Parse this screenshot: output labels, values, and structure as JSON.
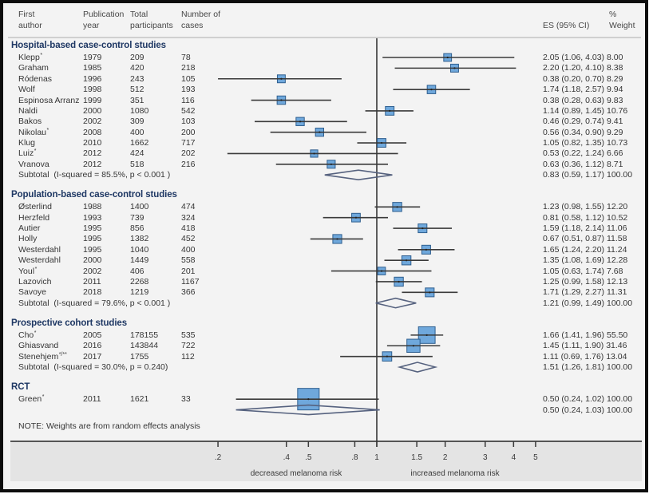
{
  "header": {
    "author": [
      "First",
      "author"
    ],
    "year": [
      "Publication",
      "year"
    ],
    "participants": [
      "Total",
      "participants"
    ],
    "cases": [
      "Number of",
      "cases"
    ],
    "es": "ES (95% CI)",
    "weight": [
      "%",
      "Weight"
    ]
  },
  "note": "NOTE: Weights are from random effects analysis",
  "colors": {
    "box_fill": "#6fa8dc",
    "box_stroke": "#2f5f8f",
    "ci_line": "#3a3a3a",
    "diamond_stroke": "#56627f",
    "subgroup_title": "#1f3864"
  },
  "chart_data": {
    "type": "scatter",
    "subtype": "forest-plot",
    "title": "",
    "x_scale": "log",
    "xlim": [
      0.2,
      5
    ],
    "null_line": 1,
    "x_ticks": [
      {
        "value": 0.2,
        "label": ".2"
      },
      {
        "value": 0.4,
        "label": ".4"
      },
      {
        "value": 0.5,
        "label": ".5"
      },
      {
        "value": 0.8,
        "label": ".8"
      },
      {
        "value": 1,
        "label": "1"
      },
      {
        "value": 1.5,
        "label": "1.5"
      },
      {
        "value": 2,
        "label": "2"
      },
      {
        "value": 3,
        "label": "3"
      },
      {
        "value": 4,
        "label": "4"
      },
      {
        "value": 5,
        "label": "5"
      }
    ],
    "xlabel_left": "decreased melanoma risk",
    "xlabel_right": "increased melanoma risk",
    "groups": [
      {
        "title": "Hospital-based case-control studies",
        "studies": [
          {
            "author": "Klepp",
            "note": "*",
            "year": "1979",
            "participants": "209",
            "cases": "78",
            "es": 2.05,
            "ci": [
              1.06,
              4.03
            ],
            "weight": 8.0,
            "es_label": "2.05 (1.06, 4.03)",
            "weight_label": "8.00"
          },
          {
            "author": "Graham",
            "year": "1985",
            "participants": "420",
            "cases": "218",
            "es": 2.2,
            "ci": [
              1.2,
              4.1
            ],
            "weight": 8.38,
            "es_label": "2.20 (1.20, 4.10)",
            "weight_label": "8.38"
          },
          {
            "author": "Ródenas",
            "year": "1996",
            "participants": "243",
            "cases": "105",
            "es": 0.38,
            "ci": [
              0.2,
              0.7
            ],
            "weight": 8.29,
            "es_label": "0.38 (0.20, 0.70)",
            "weight_label": "8.29"
          },
          {
            "author": "Wolf",
            "year": "1998",
            "participants": "512",
            "cases": "193",
            "es": 1.74,
            "ci": [
              1.18,
              2.57
            ],
            "weight": 9.94,
            "es_label": "1.74 (1.18, 2.57)",
            "weight_label": "9.94"
          },
          {
            "author": "Espinosa Arranz",
            "year": "1999",
            "participants": "351",
            "cases": "116",
            "es": 0.38,
            "ci": [
              0.28,
              0.63
            ],
            "weight": 9.83,
            "es_label": "0.38 (0.28, 0.63)",
            "weight_label": "9.83"
          },
          {
            "author": "Naldi",
            "year": "2000",
            "participants": "1080",
            "cases": "542",
            "es": 1.14,
            "ci": [
              0.89,
              1.45
            ],
            "weight": 10.76,
            "es_label": "1.14 (0.89, 1.45)",
            "weight_label": "10.76"
          },
          {
            "author": "Bakos",
            "year": "2002",
            "participants": "309",
            "cases": "103",
            "es": 0.46,
            "ci": [
              0.29,
              0.74
            ],
            "weight": 9.41,
            "es_label": "0.46 (0.29, 0.74)",
            "weight_label": "9.41"
          },
          {
            "author": "Nikolau",
            "note": "*",
            "year": "2008",
            "participants": "400",
            "cases": "200",
            "es": 0.56,
            "ci": [
              0.34,
              0.9
            ],
            "weight": 9.29,
            "es_label": "0.56 (0.34, 0.90)",
            "weight_label": "9.29"
          },
          {
            "author": "Klug",
            "year": "2010",
            "participants": "1662",
            "cases": "717",
            "es": 1.05,
            "ci": [
              0.82,
              1.35
            ],
            "weight": 10.73,
            "es_label": "1.05 (0.82, 1.35)",
            "weight_label": "10.73"
          },
          {
            "author": "Luiz",
            "note": "*",
            "year": "2012",
            "participants": "424",
            "cases": "202",
            "es": 0.53,
            "ci": [
              0.22,
              1.24
            ],
            "weight": 6.66,
            "es_label": "0.53 (0.22, 1.24)",
            "weight_label": "6.66"
          },
          {
            "author": "Vranova",
            "year": "2012",
            "participants": "518",
            "cases": "216",
            "es": 0.63,
            "ci": [
              0.36,
              1.12
            ],
            "weight": 8.71,
            "es_label": "0.63 (0.36, 1.12)",
            "weight_label": "8.71"
          }
        ],
        "subtotal": {
          "label": "Subtotal  (I-squared = 85.5%, p < 0.001 )",
          "es": 0.83,
          "ci": [
            0.59,
            1.17
          ],
          "weight": 100.0,
          "es_label": "0.83 (0.59, 1.17)",
          "weight_label": "100.00"
        }
      },
      {
        "title": "Population-based case-control studies",
        "studies": [
          {
            "author": "Østerlind",
            "year": "1988",
            "participants": "1400",
            "cases": "474",
            "es": 1.23,
            "ci": [
              0.98,
              1.55
            ],
            "weight": 12.2,
            "es_label": "1.23 (0.98, 1.55)",
            "weight_label": "12.20"
          },
          {
            "author": "Herzfeld",
            "year": "1993",
            "participants": "739",
            "cases": "324",
            "es": 0.81,
            "ci": [
              0.58,
              1.12
            ],
            "weight": 10.52,
            "es_label": "0.81 (0.58, 1.12)",
            "weight_label": "10.52"
          },
          {
            "author": "Autier",
            "year": "1995",
            "participants": "856",
            "cases": "418",
            "es": 1.59,
            "ci": [
              1.18,
              2.14
            ],
            "weight": 11.06,
            "es_label": "1.59 (1.18, 2.14)",
            "weight_label": "11.06"
          },
          {
            "author": "Holly",
            "year": "1995",
            "participants": "1382",
            "cases": "452",
            "es": 0.67,
            "ci": [
              0.51,
              0.87
            ],
            "weight": 11.58,
            "es_label": "0.67 (0.51, 0.87)",
            "weight_label": "11.58"
          },
          {
            "author": "Westerdahl",
            "year": "1995",
            "participants": "1040",
            "cases": "400",
            "es": 1.65,
            "ci": [
              1.24,
              2.2
            ],
            "weight": 11.24,
            "es_label": "1.65 (1.24, 2.20)",
            "weight_label": "11.24"
          },
          {
            "author": "Westerdahl",
            "year": "2000",
            "participants": "1449",
            "cases": "558",
            "es": 1.35,
            "ci": [
              1.08,
              1.69
            ],
            "weight": 12.28,
            "es_label": "1.35 (1.08, 1.69)",
            "weight_label": "12.28"
          },
          {
            "author": "Youl",
            "note": "*",
            "year": "2002",
            "participants": "406",
            "cases": "201",
            "es": 1.05,
            "ci": [
              0.63,
              1.74
            ],
            "weight": 7.68,
            "es_label": "1.05 (0.63, 1.74)",
            "weight_label": "7.68"
          },
          {
            "author": "Lazovich",
            "year": "2011",
            "participants": "2268",
            "cases": "1167",
            "es": 1.25,
            "ci": [
              0.99,
              1.58
            ],
            "weight": 12.13,
            "es_label": "1.25 (0.99, 1.58)",
            "weight_label": "12.13"
          },
          {
            "author": "Savoye",
            "year": "2018",
            "participants": "1219",
            "cases": "366",
            "es": 1.71,
            "ci": [
              1.29,
              2.27
            ],
            "weight": 11.31,
            "es_label": "1.71 (1.29, 2.27)",
            "weight_label": "11.31"
          }
        ],
        "subtotal": {
          "label": "Subtotal  (I-squared = 79.6%, p < 0.001 )",
          "es": 1.21,
          "ci": [
            0.99,
            1.49
          ],
          "weight": 100.0,
          "es_label": "1.21 (0.99, 1.49)",
          "weight_label": "100.00"
        }
      },
      {
        "title": "Prospective cohort studies",
        "studies": [
          {
            "author": "Cho",
            "note": "*",
            "year": "2005",
            "participants": "178155",
            "cases": "535",
            "es": 1.66,
            "ci": [
              1.41,
              1.96
            ],
            "weight": 55.5,
            "es_label": "1.66 (1.41, 1.96)",
            "weight_label": "55.50"
          },
          {
            "author": "Ghiasvand",
            "year": "2016",
            "participants": "143844",
            "cases": "722",
            "es": 1.45,
            "ci": [
              1.11,
              1.9
            ],
            "weight": 31.46,
            "es_label": "1.45 (1.11, 1.90)",
            "weight_label": "31.46"
          },
          {
            "author": "Stenehjem",
            "note": "*/**",
            "year": "2017",
            "participants": "1755",
            "cases": "112",
            "es": 1.11,
            "ci": [
              0.69,
              1.76
            ],
            "weight": 13.04,
            "es_label": "1.11 (0.69, 1.76)",
            "weight_label": "13.04"
          }
        ],
        "subtotal": {
          "label": "Subtotal  (I-squared = 30.0%, p = 0.240)",
          "es": 1.51,
          "ci": [
            1.26,
            1.81
          ],
          "weight": 100.0,
          "es_label": "1.51 (1.26, 1.81)",
          "weight_label": "100.00"
        }
      },
      {
        "title": "RCT",
        "studies": [
          {
            "author": "Green",
            "note": "*",
            "year": "2011",
            "participants": "1621",
            "cases": "33",
            "es": 0.5,
            "ci": [
              0.24,
              1.02
            ],
            "weight": 100.0,
            "es_label": "0.50 (0.24, 1.02)",
            "weight_label": "100.00"
          }
        ],
        "subtotal": {
          "label": "",
          "es": 0.5,
          "ci": [
            0.24,
            1.03
          ],
          "weight": 100.0,
          "es_label": "0.50 (0.24, 1.03)",
          "weight_label": "100.00"
        }
      }
    ]
  }
}
